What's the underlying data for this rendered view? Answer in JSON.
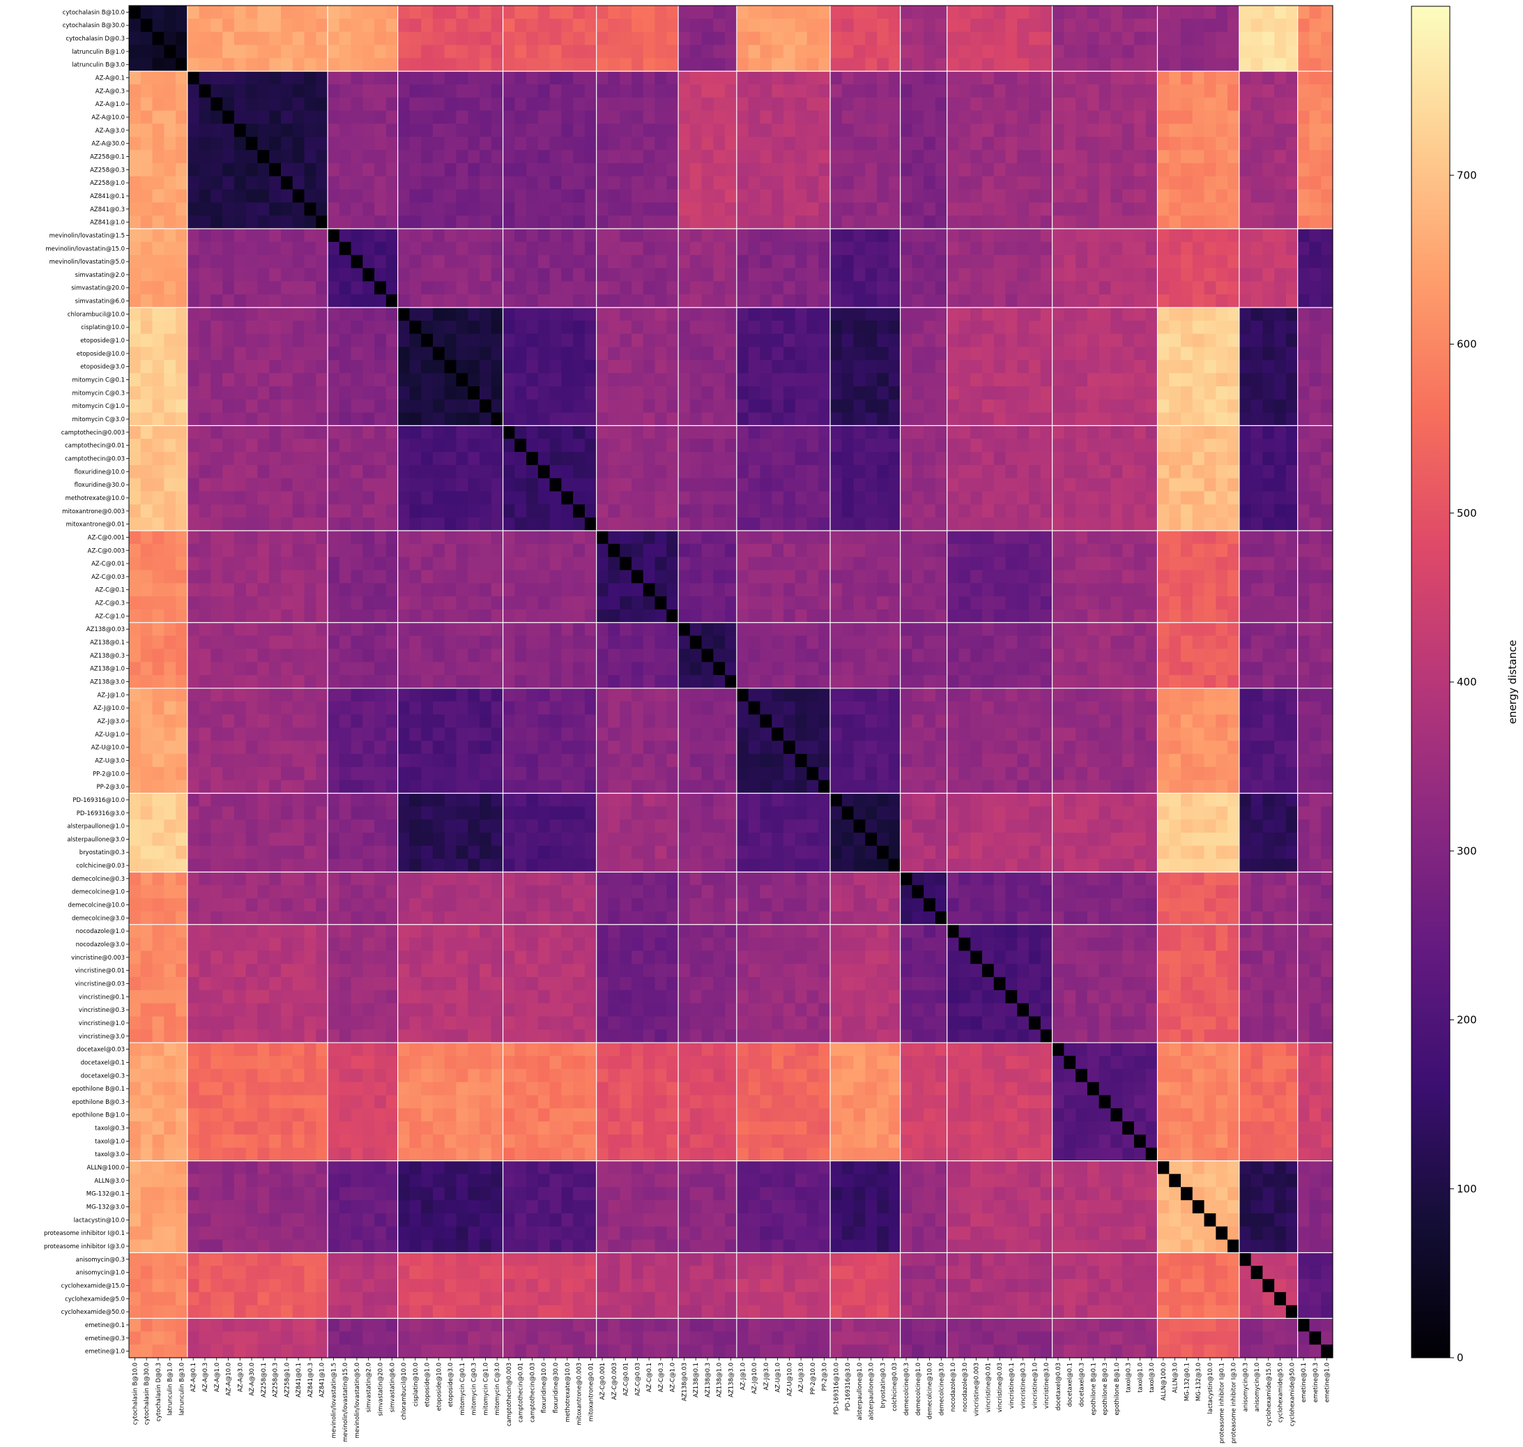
{
  "chart_data": {
    "type": "heatmap",
    "title": "",
    "colorbar": {
      "label": "energy distance",
      "ticks": [
        0,
        100,
        200,
        300,
        400,
        500,
        600,
        700
      ],
      "range": [
        0,
        800
      ],
      "colormap": "magma",
      "placement": "right"
    },
    "labels": [
      "cytochalasin B@10.0",
      "cytochalasin B@30.0",
      "cytochalasin D@0.3",
      "latrunculin B@1.0",
      "latrunculin B@3.0",
      "AZ-A@0.1",
      "AZ-A@0.3",
      "AZ-A@1.0",
      "AZ-A@10.0",
      "AZ-A@3.0",
      "AZ-A@30.0",
      "AZ258@0.1",
      "AZ258@0.3",
      "AZ258@1.0",
      "AZ841@0.1",
      "AZ841@0.3",
      "AZ841@1.0",
      "mevinolin/lovastatin@1.5",
      "mevinolin/lovastatin@15.0",
      "mevinolin/lovastatin@5.0",
      "simvastatin@2.0",
      "simvastatin@20.0",
      "simvastatin@6.0",
      "chlorambucil@10.0",
      "cisplatin@10.0",
      "etoposide@1.0",
      "etoposide@10.0",
      "etoposide@3.0",
      "mitomycin C@0.1",
      "mitomycin C@0.3",
      "mitomycin C@1.0",
      "mitomycin C@3.0",
      "camptothecin@0.003",
      "camptothecin@0.01",
      "camptothecin@0.03",
      "floxuridine@10.0",
      "floxuridine@30.0",
      "methotrexate@10.0",
      "mitoxantrone@0.003",
      "mitoxantrone@0.01",
      "AZ-C@0.001",
      "AZ-C@0.003",
      "AZ-C@0.01",
      "AZ-C@0.03",
      "AZ-C@0.1",
      "AZ-C@0.3",
      "AZ-C@1.0",
      "AZ138@0.03",
      "AZ138@0.1",
      "AZ138@0.3",
      "AZ138@1.0",
      "AZ138@3.0",
      "AZ-J@1.0",
      "AZ-J@10.0",
      "AZ-J@3.0",
      "AZ-U@1.0",
      "AZ-U@10.0",
      "AZ-U@3.0",
      "PP-2@10.0",
      "PP-2@3.0",
      "PD-169316@10.0",
      "PD-169316@3.0",
      "alsterpaullone@1.0",
      "alsterpaullone@3.0",
      "bryostatin@0.3",
      "colchicine@0.03",
      "demecolcine@0.3",
      "demecolcine@1.0",
      "demecolcine@10.0",
      "demecolcine@3.0",
      "nocodazole@1.0",
      "nocodazole@3.0",
      "vincristine@0.003",
      "vincristine@0.01",
      "vincristine@0.03",
      "vincristine@0.1",
      "vincristine@0.3",
      "vincristine@1.0",
      "vincristine@3.0",
      "docetaxel@0.03",
      "docetaxel@0.1",
      "docetaxel@0.3",
      "epothilone B@0.1",
      "epothilone B@0.3",
      "epothilone B@1.0",
      "taxol@0.3",
      "taxol@1.0",
      "taxol@3.0",
      "ALLN@100.0",
      "ALLN@3.0",
      "MG-132@0.1",
      "MG-132@3.0",
      "lactacystin@10.0",
      "proteasome inhibitor I@0.1",
      "proteasome inhibitor I@3.0",
      "anisomycin@0.3",
      "anisomycin@1.0",
      "cyclohexamide@15.0",
      "cyclohexamide@5.0",
      "cyclohexamide@50.0",
      "emetine@0.1",
      "emetine@0.3",
      "emetine@1.0"
    ],
    "groups": [
      {
        "start": 0,
        "end": 4,
        "base": [
          0,
          650,
          650,
          500,
          520,
          540,
          310,
          640,
          480,
          360,
          450,
          340,
          330,
          750,
          600,
          640,
          660
        ]
      },
      {
        "start": 5,
        "end": 16,
        "base": [
          650,
          100,
          320,
          280,
          280,
          300,
          430,
          400,
          330,
          290,
          350,
          360,
          600,
          360,
          600,
          400,
          500
        ]
      },
      {
        "start": 17,
        "end": 22,
        "base": [
          650,
          320,
          180,
          320,
          300,
          320,
          340,
          300,
          200,
          300,
          350,
          390,
          480,
          430,
          190,
          330,
          300
        ]
      },
      {
        "start": 23,
        "end": 31,
        "base": [
          720,
          330,
          300,
          90,
          190,
          340,
          320,
          200,
          120,
          330,
          400,
          400,
          720,
          130,
          320,
          400,
          330
        ]
      },
      {
        "start": 32,
        "end": 39,
        "base": [
          700,
          340,
          330,
          190,
          150,
          340,
          310,
          260,
          190,
          340,
          380,
          390,
          690,
          180,
          320,
          400,
          330
        ]
      },
      {
        "start": 40,
        "end": 46,
        "base": [
          600,
          350,
          300,
          330,
          330,
          140,
          260,
          330,
          330,
          310,
          250,
          350,
          520,
          320,
          320,
          420,
          300
        ]
      },
      {
        "start": 47,
        "end": 51,
        "base": [
          600,
          350,
          300,
          320,
          310,
          260,
          120,
          310,
          320,
          300,
          300,
          350,
          520,
          310,
          320,
          420,
          300
        ]
      },
      {
        "start": 52,
        "end": 59,
        "base": [
          650,
          350,
          240,
          200,
          260,
          330,
          310,
          120,
          210,
          330,
          330,
          340,
          620,
          210,
          300,
          390,
          310
        ]
      },
      {
        "start": 60,
        "end": 65,
        "base": [
          720,
          340,
          300,
          120,
          190,
          360,
          320,
          210,
          100,
          380,
          400,
          400,
          720,
          130,
          320,
          400,
          320
        ]
      },
      {
        "start": 66,
        "end": 69,
        "base": [
          600,
          350,
          340,
          380,
          380,
          270,
          320,
          320,
          380,
          150,
          260,
          300,
          520,
          330,
          320,
          370,
          280
        ]
      },
      {
        "start": 70,
        "end": 78,
        "base": [
          600,
          400,
          350,
          400,
          400,
          260,
          310,
          340,
          400,
          260,
          190,
          330,
          520,
          330,
          330,
          400,
          320
        ]
      },
      {
        "start": 79,
        "end": 87,
        "base": [
          650,
          550,
          460,
          600,
          580,
          500,
          480,
          540,
          620,
          450,
          450,
          220,
          600,
          550,
          450,
          500,
          460
        ]
      },
      {
        "start": 88,
        "end": 94,
        "base": [
          650,
          330,
          250,
          150,
          210,
          330,
          320,
          240,
          150,
          330,
          400,
          400,
          680,
          120,
          310,
          410,
          320
        ]
      },
      {
        "start": 95,
        "end": 99,
        "base": [
          600,
          520,
          400,
          480,
          460,
          400,
          390,
          420,
          480,
          350,
          380,
          400,
          560,
          430,
          230,
          320,
          320
        ]
      },
      {
        "start": 100,
        "end": 102,
        "base": [
          600,
          420,
          300,
          340,
          330,
          320,
          300,
          320,
          350,
          300,
          320,
          350,
          520,
          320,
          300,
          330,
          80
        ]
      }
    ]
  }
}
